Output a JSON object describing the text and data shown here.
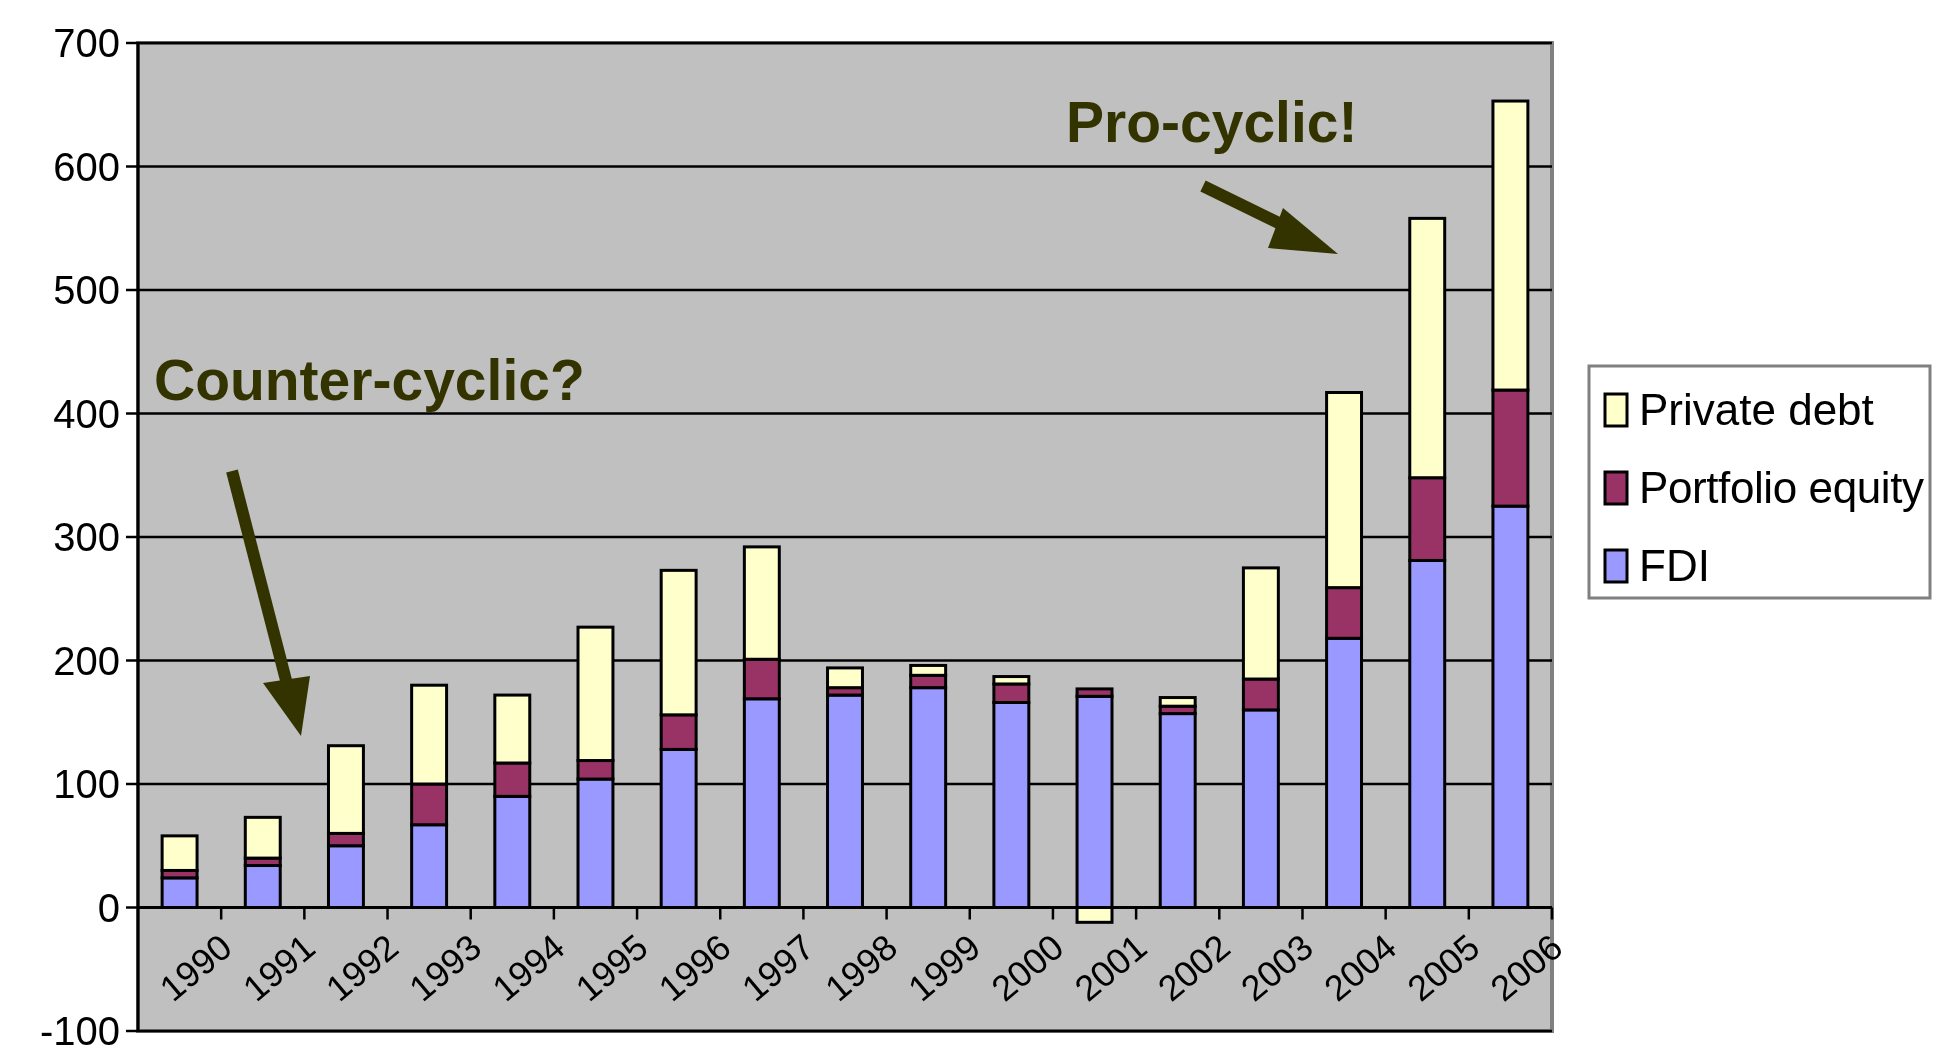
{
  "chart_data": {
    "type": "bar",
    "stacked": true,
    "categories": [
      "1990",
      "1991",
      "1992",
      "1993",
      "1994",
      "1995",
      "1996",
      "1997",
      "1998",
      "1999",
      "2000",
      "2001",
      "2002",
      "2003",
      "2004",
      "2005",
      "2006"
    ],
    "series": [
      {
        "name": "FDI",
        "color": "#9999ff",
        "values": [
          24,
          34,
          50,
          67,
          90,
          104,
          128,
          169,
          172,
          178,
          166,
          171,
          157,
          160,
          218,
          281,
          325
        ]
      },
      {
        "name": "Portfolio equity",
        "color": "#993366",
        "values": [
          6,
          6,
          10,
          33,
          27,
          15,
          28,
          32,
          6,
          10,
          15,
          6,
          6,
          25,
          41,
          67,
          94
        ]
      },
      {
        "name": "Private debt",
        "color": "#ffffcc",
        "values": [
          28,
          33,
          71,
          80,
          55,
          108,
          117,
          91,
          16,
          8,
          6,
          -12,
          7,
          90,
          158,
          210,
          234
        ]
      }
    ],
    "ylim": [
      -100,
      700
    ],
    "yticks": [
      -100,
      0,
      100,
      200,
      300,
      400,
      500,
      600,
      700
    ],
    "grid": "y",
    "legend": "right",
    "annotations": [
      "Counter-cyclic?",
      "Pro-cyclic!"
    ]
  }
}
